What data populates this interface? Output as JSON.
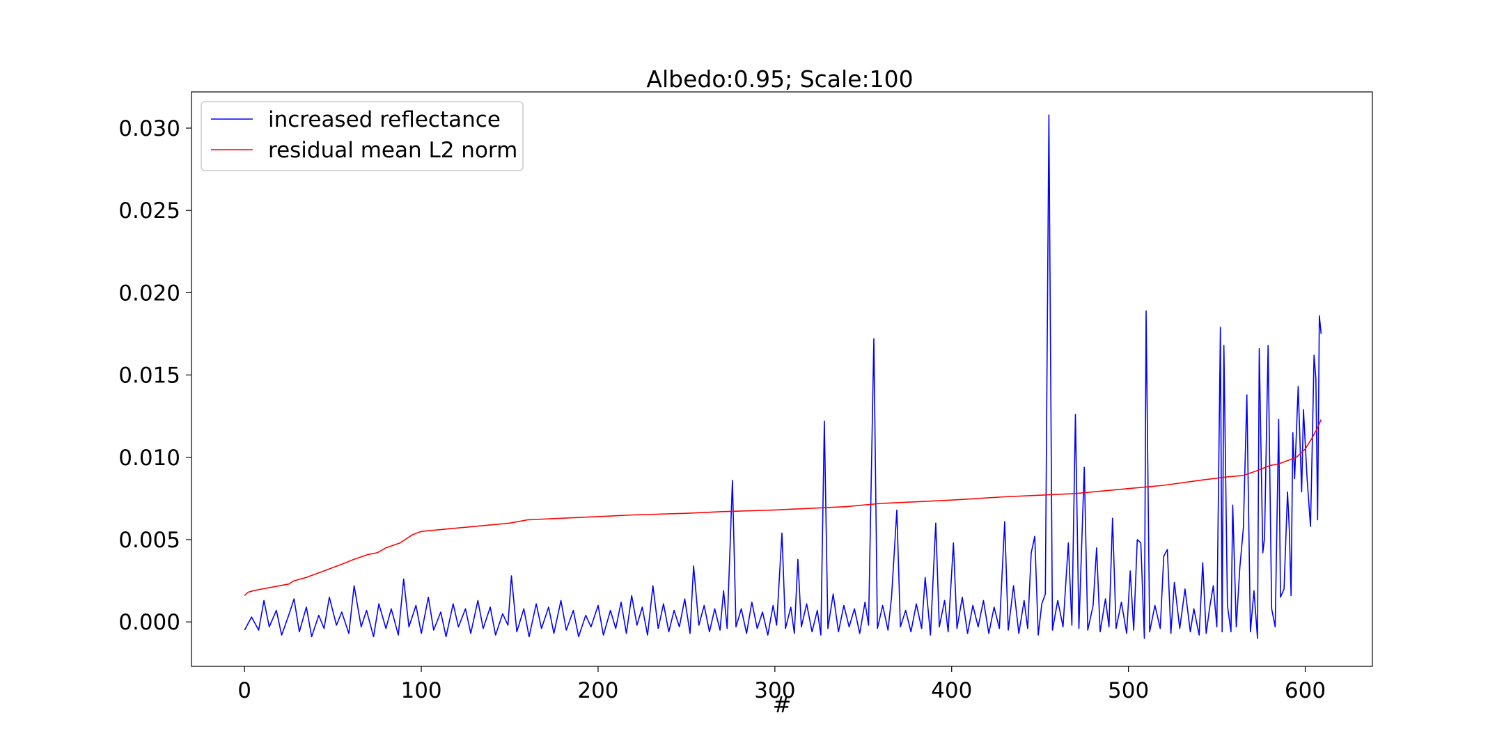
{
  "chart_data": {
    "type": "line",
    "title": "Albedo:0.95; Scale:100",
    "xlabel": "#",
    "ylabel": "",
    "xlim": [
      -30,
      638
    ],
    "ylim": [
      -0.0027,
      0.0322
    ],
    "x_ticks": [
      0,
      100,
      200,
      300,
      400,
      500,
      600
    ],
    "x_tick_labels": [
      "0",
      "100",
      "200",
      "300",
      "400",
      "500",
      "600"
    ],
    "y_ticks": [
      0.0,
      0.005,
      0.01,
      0.015,
      0.02,
      0.025,
      0.03
    ],
    "y_tick_labels": [
      "0.000",
      "0.005",
      "0.010",
      "0.015",
      "0.020",
      "0.025",
      "0.030"
    ],
    "grid": false,
    "legend_position": "top-left",
    "colors": {
      "blue": "#0000ff",
      "red": "#ff0000",
      "axes": "#000000"
    },
    "series": [
      {
        "name": "increased reflectance",
        "color": "#0000ff",
        "points": [
          [
            0,
            -0.0005
          ],
          [
            4,
            0.0003
          ],
          [
            8,
            -0.0005
          ],
          [
            11,
            0.0013
          ],
          [
            14,
            -0.0003
          ],
          [
            18,
            0.0007
          ],
          [
            21,
            -0.0008
          ],
          [
            25,
            0.0004
          ],
          [
            28,
            0.0014
          ],
          [
            31,
            -0.0006
          ],
          [
            35,
            0.0009
          ],
          [
            38,
            -0.0009
          ],
          [
            42,
            0.0004
          ],
          [
            45,
            -0.0004
          ],
          [
            48,
            0.0015
          ],
          [
            52,
            -0.0002
          ],
          [
            55,
            0.0006
          ],
          [
            59,
            -0.0007
          ],
          [
            62,
            0.0022
          ],
          [
            66,
            -0.0003
          ],
          [
            69,
            0.0007
          ],
          [
            73,
            -0.0009
          ],
          [
            76,
            0.0011
          ],
          [
            80,
            -0.0004
          ],
          [
            83,
            0.0008
          ],
          [
            87,
            -0.0008
          ],
          [
            90,
            0.0026
          ],
          [
            93,
            -0.0003
          ],
          [
            97,
            0.001
          ],
          [
            100,
            -0.0007
          ],
          [
            104,
            0.0015
          ],
          [
            107,
            -0.0005
          ],
          [
            111,
            0.0006
          ],
          [
            114,
            -0.0009
          ],
          [
            118,
            0.0011
          ],
          [
            121,
            -0.0003
          ],
          [
            125,
            0.0008
          ],
          [
            128,
            -0.0007
          ],
          [
            132,
            0.0013
          ],
          [
            135,
            -0.0004
          ],
          [
            139,
            0.0009
          ],
          [
            142,
            -0.0008
          ],
          [
            146,
            0.0005
          ],
          [
            149,
            -0.0002
          ],
          [
            151,
            0.0028
          ],
          [
            154,
            -0.0006
          ],
          [
            158,
            0.0008
          ],
          [
            161,
            -0.0009
          ],
          [
            165,
            0.0011
          ],
          [
            168,
            -0.0004
          ],
          [
            172,
            0.0009
          ],
          [
            175,
            -0.0007
          ],
          [
            179,
            0.0013
          ],
          [
            182,
            -0.0005
          ],
          [
            186,
            0.0007
          ],
          [
            189,
            -0.0009
          ],
          [
            193,
            0.0004
          ],
          [
            196,
            -0.0003
          ],
          [
            200,
            0.001
          ],
          [
            203,
            -0.0008
          ],
          [
            207,
            0.0007
          ],
          [
            210,
            -0.0004
          ],
          [
            213,
            0.0012
          ],
          [
            216,
            -0.0007
          ],
          [
            219,
            0.0016
          ],
          [
            222,
            -0.0002
          ],
          [
            225,
            0.0009
          ],
          [
            228,
            -0.0008
          ],
          [
            231,
            0.0022
          ],
          [
            234,
            -0.0004
          ],
          [
            237,
            0.0011
          ],
          [
            240,
            -0.0006
          ],
          [
            243,
            0.0007
          ],
          [
            246,
            -0.0003
          ],
          [
            249,
            0.0014
          ],
          [
            252,
            -0.0007
          ],
          [
            254,
            0.0034
          ],
          [
            257,
            -0.0002
          ],
          [
            260,
            0.001
          ],
          [
            263,
            -0.0006
          ],
          [
            266,
            0.0008
          ],
          [
            269,
            -0.0005
          ],
          [
            271,
            0.0019
          ],
          [
            273,
            -0.0004
          ],
          [
            276,
            0.0086
          ],
          [
            278,
            -0.0003
          ],
          [
            281,
            0.0008
          ],
          [
            284,
            -0.0007
          ],
          [
            287,
            0.0012
          ],
          [
            290,
            -0.0004
          ],
          [
            293,
            0.0006
          ],
          [
            296,
            -0.0008
          ],
          [
            299,
            0.001
          ],
          [
            301,
            -0.0002
          ],
          [
            304,
            0.0054
          ],
          [
            306,
            -0.0004
          ],
          [
            309,
            0.0009
          ],
          [
            311,
            -0.0007
          ],
          [
            313,
            0.0038
          ],
          [
            315,
            -0.0003
          ],
          [
            318,
            0.0011
          ],
          [
            321,
            -0.0006
          ],
          [
            324,
            0.0007
          ],
          [
            326,
            -0.0008
          ],
          [
            328,
            0.0122
          ],
          [
            330,
            -0.0004
          ],
          [
            333,
            0.0017
          ],
          [
            336,
            -0.0006
          ],
          [
            339,
            0.001
          ],
          [
            342,
            -0.0003
          ],
          [
            345,
            0.0008
          ],
          [
            348,
            -0.0007
          ],
          [
            351,
            0.0012
          ],
          [
            353,
            -0.0002
          ],
          [
            356,
            0.0172
          ],
          [
            358,
            -0.0004
          ],
          [
            361,
            0.001
          ],
          [
            364,
            -0.0005
          ],
          [
            366,
            0.0015
          ],
          [
            369,
            0.0068
          ],
          [
            371,
            -0.0003
          ],
          [
            374,
            0.0007
          ],
          [
            377,
            -0.0006
          ],
          [
            380,
            0.0011
          ],
          [
            383,
            -0.0004
          ],
          [
            385,
            0.0027
          ],
          [
            388,
            -0.0008
          ],
          [
            391,
            0.006
          ],
          [
            393,
            -0.0003
          ],
          [
            396,
            0.0013
          ],
          [
            398,
            -0.0006
          ],
          [
            401,
            0.0048
          ],
          [
            403,
            -0.0004
          ],
          [
            406,
            0.0015
          ],
          [
            409,
            -0.0007
          ],
          [
            412,
            0.001
          ],
          [
            415,
            -0.0003
          ],
          [
            418,
            0.0013
          ],
          [
            421,
            -0.0007
          ],
          [
            424,
            0.0009
          ],
          [
            427,
            -0.0004
          ],
          [
            430,
            0.0061
          ],
          [
            432,
            -0.0005
          ],
          [
            435,
            0.0022
          ],
          [
            438,
            -0.0007
          ],
          [
            441,
            0.0013
          ],
          [
            443,
            -0.0004
          ],
          [
            445,
            0.0042
          ],
          [
            447,
            0.0052
          ],
          [
            449,
            -0.0008
          ],
          [
            451,
            0.0011
          ],
          [
            453,
            0.0017
          ],
          [
            455,
            0.0308
          ],
          [
            457,
            -0.0005
          ],
          [
            460,
            0.0013
          ],
          [
            463,
            -0.0003
          ],
          [
            466,
            0.0048
          ],
          [
            468,
            -0.0002
          ],
          [
            470,
            0.0126
          ],
          [
            472,
            -0.0004
          ],
          [
            475,
            0.0094
          ],
          [
            477,
            -0.0005
          ],
          [
            480,
            0.001
          ],
          [
            482,
            0.0045
          ],
          [
            484,
            -0.0006
          ],
          [
            487,
            0.0014
          ],
          [
            489,
            -0.0003
          ],
          [
            491,
            0.0063
          ],
          [
            493,
            -0.0004
          ],
          [
            496,
            0.0012
          ],
          [
            499,
            -0.0007
          ],
          [
            501,
            0.0031
          ],
          [
            503,
            -0.0005
          ],
          [
            505,
            0.005
          ],
          [
            507,
            0.0048
          ],
          [
            509,
            -0.001
          ],
          [
            510,
            0.0189
          ],
          [
            512,
            -0.0006
          ],
          [
            515,
            0.001
          ],
          [
            518,
            -0.0004
          ],
          [
            520,
            0.004
          ],
          [
            522,
            0.0044
          ],
          [
            524,
            -0.0007
          ],
          [
            526,
            0.0024
          ],
          [
            529,
            -0.0004
          ],
          [
            532,
            0.002
          ],
          [
            535,
            -0.0006
          ],
          [
            537,
            0.0008
          ],
          [
            540,
            -0.0008
          ],
          [
            542,
            0.0036
          ],
          [
            544,
            -0.0007
          ],
          [
            546,
            0.0009
          ],
          [
            548,
            0.0022
          ],
          [
            550,
            -0.0003
          ],
          [
            552,
            0.0179
          ],
          [
            553,
            -0.0006
          ],
          [
            554,
            0.0168
          ],
          [
            556,
            0.001
          ],
          [
            558,
            -0.0006
          ],
          [
            559,
            0.0071
          ],
          [
            561,
            -0.0003
          ],
          [
            563,
            0.0033
          ],
          [
            565,
            0.0057
          ],
          [
            567,
            0.0138
          ],
          [
            569,
            -0.0006
          ],
          [
            571,
            0.0019
          ],
          [
            573,
            -0.001
          ],
          [
            574,
            0.0166
          ],
          [
            576,
            0.0042
          ],
          [
            577,
            0.0051
          ],
          [
            579,
            0.0168
          ],
          [
            581,
            0.0008
          ],
          [
            583,
            -0.0003
          ],
          [
            585,
            0.0123
          ],
          [
            586,
            0.0015
          ],
          [
            588,
            0.002
          ],
          [
            590,
            0.0079
          ],
          [
            591,
            0.0056
          ],
          [
            592,
            0.0016
          ],
          [
            593,
            0.0115
          ],
          [
            594,
            0.0087
          ],
          [
            596,
            0.0143
          ],
          [
            598,
            0.0079
          ],
          [
            599,
            0.0129
          ],
          [
            601,
            0.0088
          ],
          [
            603,
            0.0058
          ],
          [
            604,
            0.0109
          ],
          [
            605,
            0.0162
          ],
          [
            606,
            0.0148
          ],
          [
            607,
            0.0062
          ],
          [
            608,
            0.0186
          ],
          [
            609,
            0.0175
          ]
        ]
      },
      {
        "name": "residual mean L2 norm",
        "color": "#ff0000",
        "points": [
          [
            0,
            0.0016
          ],
          [
            2,
            0.0018
          ],
          [
            5,
            0.0019
          ],
          [
            10,
            0.002
          ],
          [
            20,
            0.0022
          ],
          [
            25,
            0.0023
          ],
          [
            28,
            0.0025
          ],
          [
            35,
            0.0027
          ],
          [
            45,
            0.0031
          ],
          [
            55,
            0.0035
          ],
          [
            62,
            0.0038
          ],
          [
            70,
            0.0041
          ],
          [
            75,
            0.0042
          ],
          [
            80,
            0.0045
          ],
          [
            88,
            0.0048
          ],
          [
            95,
            0.0053
          ],
          [
            100,
            0.0055
          ],
          [
            110,
            0.0056
          ],
          [
            120,
            0.0057
          ],
          [
            130,
            0.0058
          ],
          [
            150,
            0.006
          ],
          [
            160,
            0.0062
          ],
          [
            180,
            0.0063
          ],
          [
            200,
            0.0064
          ],
          [
            220,
            0.0065
          ],
          [
            250,
            0.0066
          ],
          [
            270,
            0.0067
          ],
          [
            300,
            0.0068
          ],
          [
            320,
            0.0069
          ],
          [
            340,
            0.007
          ],
          [
            360,
            0.0072
          ],
          [
            400,
            0.0074
          ],
          [
            430,
            0.0076
          ],
          [
            450,
            0.0077
          ],
          [
            470,
            0.0078
          ],
          [
            500,
            0.0081
          ],
          [
            520,
            0.0083
          ],
          [
            540,
            0.0086
          ],
          [
            555,
            0.0088
          ],
          [
            565,
            0.0089
          ],
          [
            573,
            0.0092
          ],
          [
            580,
            0.0095
          ],
          [
            585,
            0.0096
          ],
          [
            590,
            0.0098
          ],
          [
            595,
            0.01
          ],
          [
            600,
            0.0105
          ],
          [
            604,
            0.0112
          ],
          [
            607,
            0.0118
          ],
          [
            609,
            0.0123
          ]
        ]
      }
    ]
  }
}
